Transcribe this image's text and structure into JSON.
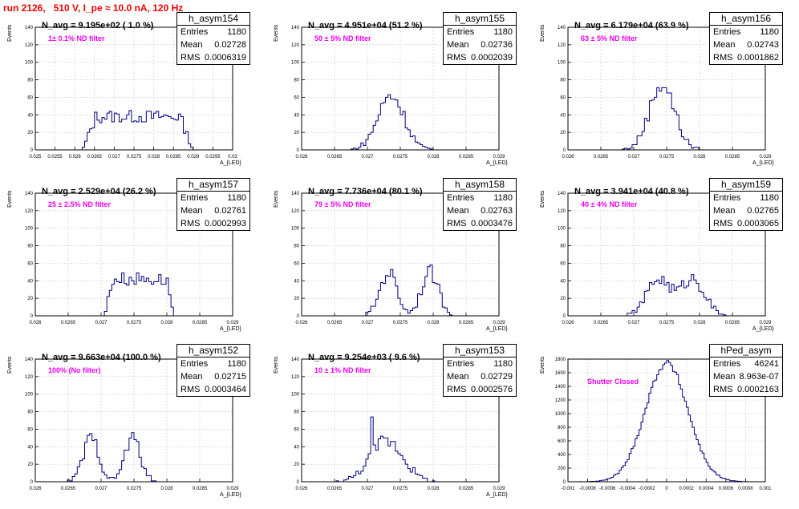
{
  "title": "run 2126,   510 V, I_pe ≈ 10.0 nA, 120 Hz",
  "colors": {
    "title": "#ee0000",
    "hist_line": "#000080",
    "filter_label": "#ee00ee",
    "grid": "#c8c8c8"
  },
  "chart_data": [
    {
      "type": "bar",
      "name": "h_asym154",
      "navg": "N_avg = 9.195e+02 ( 1.0 %)",
      "filter": "1± 0.1% ND filter",
      "entries": "1180",
      "mean": "0.02728",
      "rms": "0.0006319",
      "ylabel": "Events",
      "xlabel": "A_{LED}",
      "xlim": [
        0.025,
        0.03
      ],
      "ylim": [
        0,
        140
      ],
      "grid": true,
      "xticks": [
        "0.025",
        "0.0255",
        "0.026",
        "0.0265",
        "0.027",
        "0.0275",
        "0.028",
        "0.0285",
        "0.029",
        "0.0295",
        "0.03"
      ],
      "yticks": [
        "0",
        "20",
        "40",
        "60",
        "80",
        "100",
        "120",
        "140"
      ],
      "shape": {
        "kind": "flat",
        "x0": 0.0262,
        "x1": 0.029,
        "peak": 38,
        "nbins": 80
      }
    },
    {
      "type": "bar",
      "name": "h_asym155",
      "navg": "N_avg = 4.951e+04 (51.2 %)",
      "filter": "50 ± 5% ND filter",
      "entries": "1180",
      "mean": "0.02736",
      "rms": "0.0002039",
      "ylabel": "Events",
      "xlabel": "A_{LED}",
      "xlim": [
        0.026,
        0.029
      ],
      "ylim": [
        0,
        140
      ],
      "grid": true,
      "xticks": [
        "0.026",
        "0.0265",
        "0.027",
        "0.0275",
        "0.028",
        "0.0285",
        "0.029"
      ],
      "yticks": [
        "0",
        "20",
        "40",
        "60",
        "80",
        "100",
        "120",
        "140"
      ],
      "shape": {
        "kind": "gauss",
        "mean": 0.02736,
        "sigma": 0.0002,
        "peak": 62,
        "nbins": 80
      }
    },
    {
      "type": "bar",
      "name": "h_asym156",
      "navg": "N_avg = 6.179e+04 (63.9 %)",
      "filter": "63 ± 5% ND filter",
      "entries": "1180",
      "mean": "0.02743",
      "rms": "0.0001862",
      "ylabel": "Events",
      "xlabel": "A_{LED}",
      "xlim": [
        0.026,
        0.029
      ],
      "ylim": [
        0,
        140
      ],
      "grid": true,
      "xticks": [
        "0.026",
        "0.0265",
        "0.027",
        "0.0275",
        "0.028",
        "0.0285",
        "0.029"
      ],
      "yticks": [
        "0",
        "20",
        "40",
        "60",
        "80",
        "100",
        "120",
        "140"
      ],
      "shape": {
        "kind": "gauss",
        "mean": 0.02743,
        "sigma": 0.00019,
        "peak": 75,
        "nbins": 80
      }
    },
    {
      "type": "bar",
      "name": "h_asym157",
      "navg": "N_avg = 2.529e+04 (26.2 %)",
      "filter": "25 ± 2.5% ND filter",
      "entries": "1180",
      "mean": "0.02761",
      "rms": "0.0002993",
      "ylabel": "Events",
      "xlabel": "A_{LED}",
      "xlim": [
        0.026,
        0.029
      ],
      "ylim": [
        0,
        140
      ],
      "grid": true,
      "xticks": [
        "0.026",
        "0.0265",
        "0.027",
        "0.0275",
        "0.028",
        "0.0285",
        "0.029"
      ],
      "yticks": [
        "0",
        "20",
        "40",
        "60",
        "80",
        "100",
        "120",
        "140"
      ],
      "shape": {
        "kind": "flat",
        "x0": 0.02705,
        "x1": 0.02812,
        "peak": 42,
        "nbins": 80
      }
    },
    {
      "type": "bar",
      "name": "h_asym158",
      "navg": "N_avg = 7.736e+04 (80.1 %)",
      "filter": "79 ± 5% ND filter",
      "entries": "1180",
      "mean": "0.02763",
      "rms": "0.0003476",
      "ylabel": "Events",
      "xlabel": "A_{LED}",
      "xlim": [
        0.026,
        0.029
      ],
      "ylim": [
        0,
        140
      ],
      "grid": true,
      "xticks": [
        "0.026",
        "0.0265",
        "0.027",
        "0.0275",
        "0.028",
        "0.0285",
        "0.029"
      ],
      "yticks": [
        "0",
        "20",
        "40",
        "60",
        "80",
        "100",
        "120",
        "140"
      ],
      "shape": {
        "kind": "double",
        "m1": 0.02732,
        "m2": 0.02795,
        "sigma": 0.00013,
        "peak": 50,
        "nbins": 80
      }
    },
    {
      "type": "bar",
      "name": "h_asym159",
      "navg": "N_avg = 3.941e+04 (40.8 %)",
      "filter": "40 ± 4% ND filter",
      "entries": "1180",
      "mean": "0.02765",
      "rms": "0.0003065",
      "ylabel": "Events",
      "xlabel": "A_{LED}",
      "xlim": [
        0.026,
        0.029
      ],
      "ylim": [
        0,
        140
      ],
      "grid": true,
      "xticks": [
        "0.026",
        "0.0265",
        "0.027",
        "0.0275",
        "0.028",
        "0.0285",
        "0.029"
      ],
      "yticks": [
        "0",
        "20",
        "40",
        "60",
        "80",
        "100",
        "120",
        "140"
      ],
      "shape": {
        "kind": "double",
        "m1": 0.02738,
        "m2": 0.0279,
        "sigma": 0.00018,
        "peak": 42,
        "nbins": 80
      }
    },
    {
      "type": "bar",
      "name": "h_asym152",
      "navg": "N_avg = 9.663e+04 (100.0 %)",
      "filter": "100% (No filter)",
      "entries": "1180",
      "mean": "0.02715",
      "rms": "0.0003464",
      "ylabel": "Events",
      "xlabel": "A_{LED}",
      "xlim": [
        0.026,
        0.029
      ],
      "ylim": [
        0,
        140
      ],
      "grid": true,
      "xticks": [
        "0.026",
        "0.0265",
        "0.027",
        "0.0275",
        "0.028",
        "0.0285",
        "0.029"
      ],
      "yticks": [
        "0",
        "20",
        "40",
        "60",
        "80",
        "100",
        "120",
        "140"
      ],
      "shape": {
        "kind": "double",
        "m1": 0.02685,
        "m2": 0.02748,
        "sigma": 0.00012,
        "peak": 50,
        "nbins": 80
      }
    },
    {
      "type": "bar",
      "name": "h_asym153",
      "navg": "N_avg = 9.254e+03 ( 9.6 %)",
      "filter": "10 ± 1% ND filter",
      "entries": "1180",
      "mean": "0.02729",
      "rms": "0.0002576",
      "ylabel": "Events",
      "xlabel": "A_{LED}",
      "xlim": [
        0.026,
        0.029
      ],
      "ylim": [
        0,
        140
      ],
      "grid": true,
      "xticks": [
        "0.026",
        "0.0265",
        "0.027",
        "0.0275",
        "0.028",
        "0.0285",
        "0.029"
      ],
      "yticks": [
        "0",
        "20",
        "40",
        "60",
        "80",
        "100",
        "120",
        "140"
      ],
      "shape": {
        "kind": "gauss",
        "mean": 0.02729,
        "sigma": 0.00025,
        "peak": 48,
        "nbins": 80,
        "spike_x": 0.02707,
        "spike_y": 74
      }
    },
    {
      "type": "bar",
      "name": "hPed_asym",
      "navg": "",
      "filter": "Shutter Closed",
      "entries": "46241",
      "mean": "8.963e-07",
      "rms": "0.0002163",
      "ylabel": "Events",
      "xlabel": "",
      "xlim": [
        -0.001,
        0.001
      ],
      "ylim": [
        0,
        1800
      ],
      "grid": true,
      "xticks": [
        "-0.001",
        "-0.0008",
        "-0.0006",
        "-0.0004",
        "-0.0002",
        "0",
        "0.0002",
        "0.0004",
        "0.0006",
        "0.0008",
        "0.001"
      ],
      "yticks": [
        "0",
        "200",
        "400",
        "600",
        "800",
        "1000",
        "1200",
        "1400",
        "1600",
        "1800"
      ],
      "shape": {
        "kind": "gauss",
        "mean": 0.0,
        "sigma": 0.000216,
        "peak": 1740,
        "nbins": 100
      }
    }
  ]
}
